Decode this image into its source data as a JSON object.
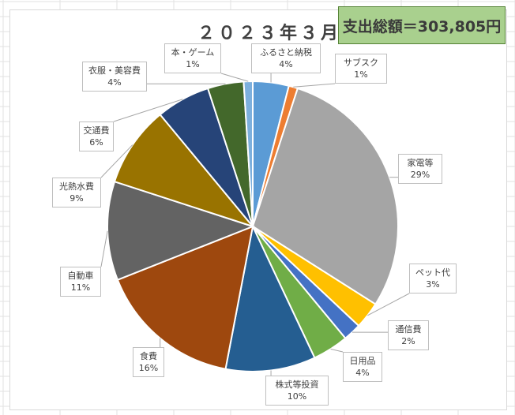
{
  "title": "２０２３年３月",
  "total_label": "支出総額＝303,805円",
  "chart_data": {
    "type": "pie",
    "title": "２０２３年３月",
    "start_angle": 0,
    "direction": "clockwise",
    "slices": [
      {
        "label": "ふるさと納税",
        "percent_label": "4%",
        "value": 4,
        "color": "#5b9bd5"
      },
      {
        "label": "サブスク",
        "percent_label": "1%",
        "value": 1,
        "color": "#ed7d31"
      },
      {
        "label": "家電等",
        "percent_label": "29%",
        "value": 29,
        "color": "#a5a5a5"
      },
      {
        "label": "ペット代",
        "percent_label": "3%",
        "value": 3,
        "color": "#ffc000"
      },
      {
        "label": "通信費",
        "percent_label": "2%",
        "value": 2,
        "color": "#4472c4"
      },
      {
        "label": "日用品",
        "percent_label": "4%",
        "value": 4,
        "color": "#70ad47"
      },
      {
        "label": "株式等投資",
        "percent_label": "10%",
        "value": 10,
        "color": "#255e91"
      },
      {
        "label": "食費",
        "percent_label": "16%",
        "value": 16,
        "color": "#9e480e"
      },
      {
        "label": "自動車",
        "percent_label": "11%",
        "value": 11,
        "color": "#636363"
      },
      {
        "label": "光熱水費",
        "percent_label": "9%",
        "value": 9,
        "color": "#997300"
      },
      {
        "label": "交通費",
        "percent_label": "6%",
        "value": 6,
        "color": "#264478"
      },
      {
        "label": "衣服・美容費",
        "percent_label": "4%",
        "value": 4,
        "color": "#43682b"
      },
      {
        "label": "本・ゲーム",
        "percent_label": "1%",
        "value": 1,
        "color": "#7cafdd"
      }
    ]
  }
}
